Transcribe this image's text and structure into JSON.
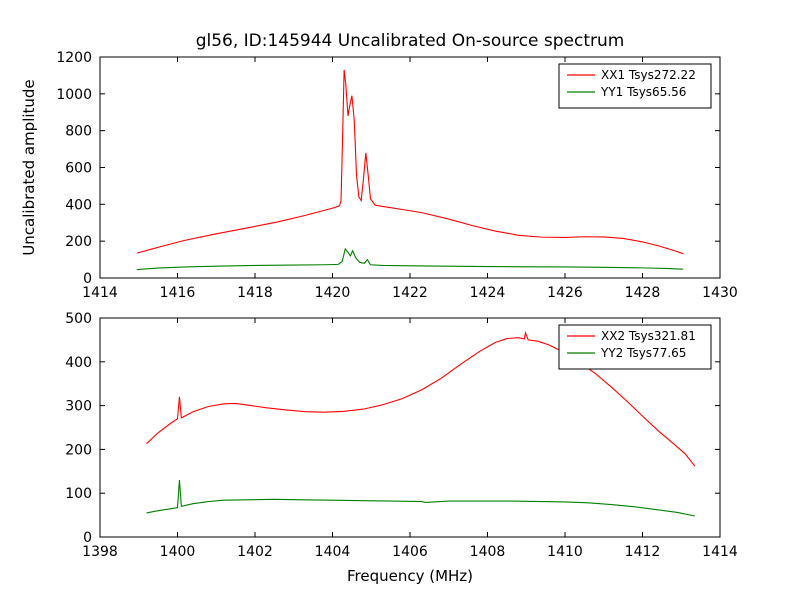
{
  "figure": {
    "background": "#ffffff",
    "axis_color": "#000000",
    "text_color": "#000000"
  },
  "chart_data": [
    {
      "type": "line",
      "title": "gl56, ID:145944 Uncalibrated On-source spectrum",
      "xlabel": "",
      "ylabel": "Uncalibrated amplitude",
      "xlim": [
        1414,
        1430
      ],
      "ylim": [
        0,
        1200
      ],
      "xticks": [
        1414,
        1416,
        1418,
        1420,
        1422,
        1424,
        1426,
        1428,
        1430
      ],
      "yticks": [
        0,
        200,
        400,
        600,
        800,
        1000,
        1200
      ],
      "grid": false,
      "legend_position": "top-right",
      "series": [
        {
          "name": "XX1 Tsys272.22",
          "color": "#ff0000",
          "x": [
            1414.95,
            1415.3,
            1415.7,
            1416.2,
            1417.0,
            1417.8,
            1418.6,
            1419.3,
            1419.8,
            1420.05,
            1420.18,
            1420.22,
            1420.26,
            1420.3,
            1420.34,
            1420.4,
            1420.44,
            1420.5,
            1420.56,
            1420.62,
            1420.68,
            1420.74,
            1420.8,
            1420.86,
            1420.92,
            1420.98,
            1421.1,
            1421.4,
            1421.8,
            1422.3,
            1423.0,
            1423.6,
            1424.2,
            1424.8,
            1425.4,
            1426.0,
            1426.5,
            1427.0,
            1427.5,
            1428.0,
            1428.4,
            1428.8,
            1429.05
          ],
          "y": [
            135,
            155,
            178,
            205,
            240,
            272,
            305,
            340,
            368,
            382,
            392,
            420,
            760,
            1130,
            1060,
            880,
            930,
            990,
            860,
            560,
            440,
            420,
            540,
            680,
            560,
            430,
            395,
            385,
            372,
            355,
            320,
            285,
            255,
            232,
            222,
            220,
            224,
            223,
            215,
            196,
            175,
            150,
            132
          ]
        },
        {
          "name": "YY1 Tsys65.56",
          "color": "#008000",
          "x": [
            1414.95,
            1415.5,
            1416.2,
            1417.0,
            1418.0,
            1419.0,
            1419.8,
            1420.15,
            1420.25,
            1420.33,
            1420.4,
            1420.46,
            1420.52,
            1420.6,
            1420.7,
            1420.82,
            1420.9,
            1420.98,
            1421.3,
            1422.0,
            1423.0,
            1424.0,
            1425.0,
            1426.0,
            1427.0,
            1428.0,
            1428.6,
            1429.05
          ],
          "y": [
            46,
            54,
            60,
            64,
            68,
            70,
            72,
            74,
            90,
            158,
            140,
            120,
            148,
            110,
            85,
            80,
            100,
            72,
            68,
            66,
            64,
            62,
            61,
            60,
            58,
            55,
            52,
            48
          ]
        }
      ]
    },
    {
      "type": "line",
      "title": "",
      "xlabel": "Frequency (MHz)",
      "ylabel": "",
      "xlim": [
        1398,
        1414
      ],
      "ylim": [
        0,
        500
      ],
      "xticks": [
        1398,
        1400,
        1402,
        1404,
        1406,
        1408,
        1410,
        1412,
        1414
      ],
      "yticks": [
        0,
        100,
        200,
        300,
        400,
        500
      ],
      "grid": false,
      "legend_position": "top-right",
      "series": [
        {
          "name": "XX2 Tsys321.81",
          "color": "#ff0000",
          "x": [
            1399.2,
            1399.5,
            1399.8,
            1400.0,
            1400.05,
            1400.1,
            1400.4,
            1400.8,
            1401.2,
            1401.5,
            1401.9,
            1402.3,
            1402.8,
            1403.3,
            1403.8,
            1404.3,
            1404.8,
            1405.3,
            1405.8,
            1406.3,
            1406.8,
            1407.3,
            1407.8,
            1408.2,
            1408.5,
            1408.8,
            1408.95,
            1408.98,
            1409.05,
            1409.3,
            1409.6,
            1410.0,
            1410.4,
            1410.8,
            1411.2,
            1411.6,
            1412.0,
            1412.4,
            1412.8,
            1413.1,
            1413.35
          ],
          "y": [
            213,
            238,
            258,
            270,
            320,
            272,
            286,
            298,
            304,
            305,
            300,
            295,
            290,
            286,
            285,
            287,
            292,
            302,
            316,
            336,
            362,
            394,
            424,
            444,
            453,
            455,
            452,
            466,
            450,
            447,
            438,
            420,
            398,
            372,
            342,
            310,
            276,
            243,
            213,
            190,
            162
          ]
        },
        {
          "name": "YY2 Tsys77.65",
          "color": "#008000",
          "x": [
            1399.2,
            1399.5,
            1399.8,
            1400.0,
            1400.05,
            1400.1,
            1400.4,
            1400.8,
            1401.2,
            1401.8,
            1402.5,
            1403.2,
            1404.0,
            1404.8,
            1405.6,
            1406.3,
            1406.4,
            1407.0,
            1407.8,
            1408.6,
            1409.4,
            1410.0,
            1410.6,
            1411.2,
            1411.8,
            1412.4,
            1412.9,
            1413.35
          ],
          "y": [
            55,
            60,
            64,
            67,
            130,
            70,
            76,
            81,
            84,
            85,
            86,
            85,
            84,
            83,
            82,
            81,
            79,
            82,
            82,
            82,
            81,
            80,
            78,
            74,
            69,
            62,
            56,
            48
          ]
        }
      ]
    }
  ]
}
